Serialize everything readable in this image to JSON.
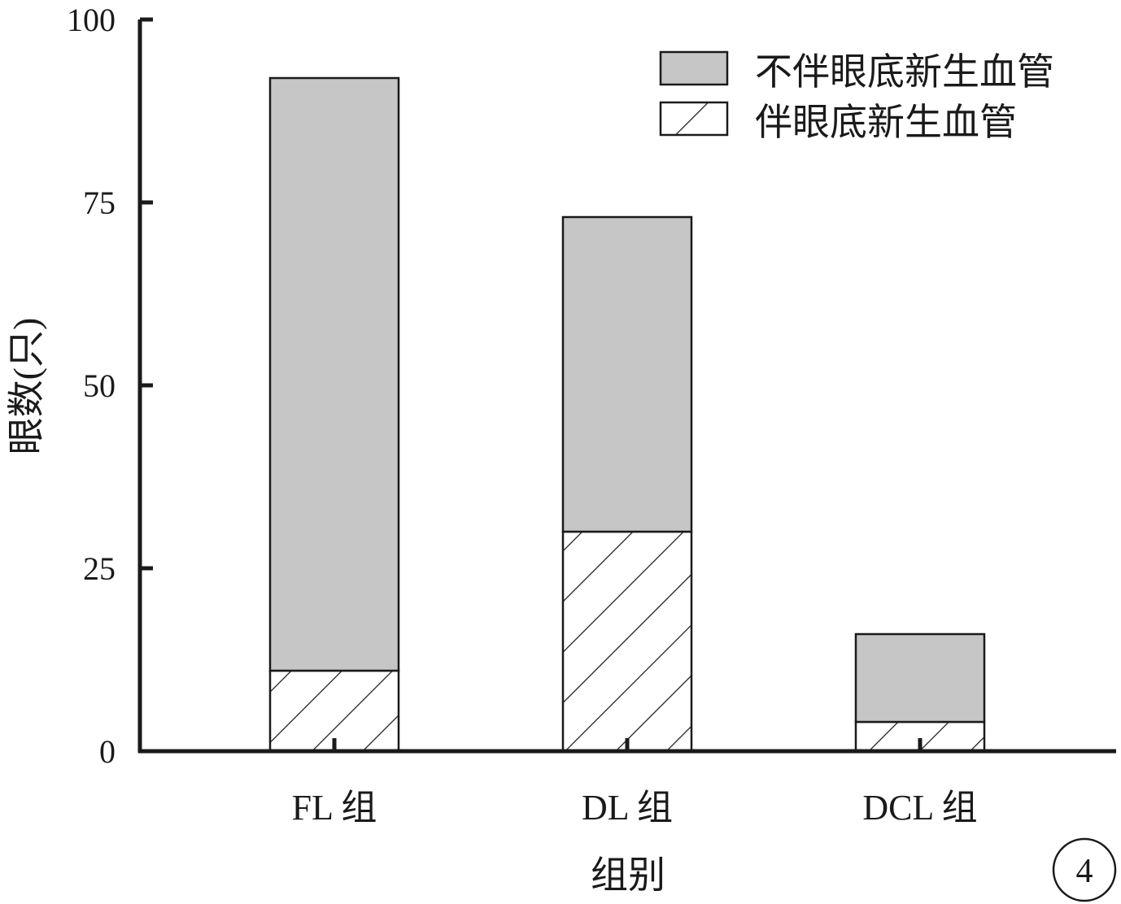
{
  "chart_data": {
    "type": "bar",
    "stacked": true,
    "title": "",
    "xlabel": "组别",
    "ylabel": "眼数(只)",
    "ylim": [
      0,
      100
    ],
    "yticks": [
      "0",
      "25",
      "50",
      "75",
      "100"
    ],
    "categories": [
      "FL 组",
      "DL 组",
      "DCL 组"
    ],
    "series": [
      {
        "name": "伴眼底新生血管",
        "values": [
          11,
          30,
          4
        ],
        "fill": "hatch"
      },
      {
        "name": "不伴眼底新生血管",
        "values": [
          81,
          43,
          12
        ],
        "fill": "#c6c6c6"
      }
    ],
    "legend": {
      "position": "top-right",
      "items": [
        "不伴眼底新生血管",
        "伴眼底新生血管"
      ]
    },
    "grid": false
  },
  "panel_label": "4",
  "colors": {
    "gray_fill": "#c6c6c6",
    "axis": "#1a1a1a"
  }
}
